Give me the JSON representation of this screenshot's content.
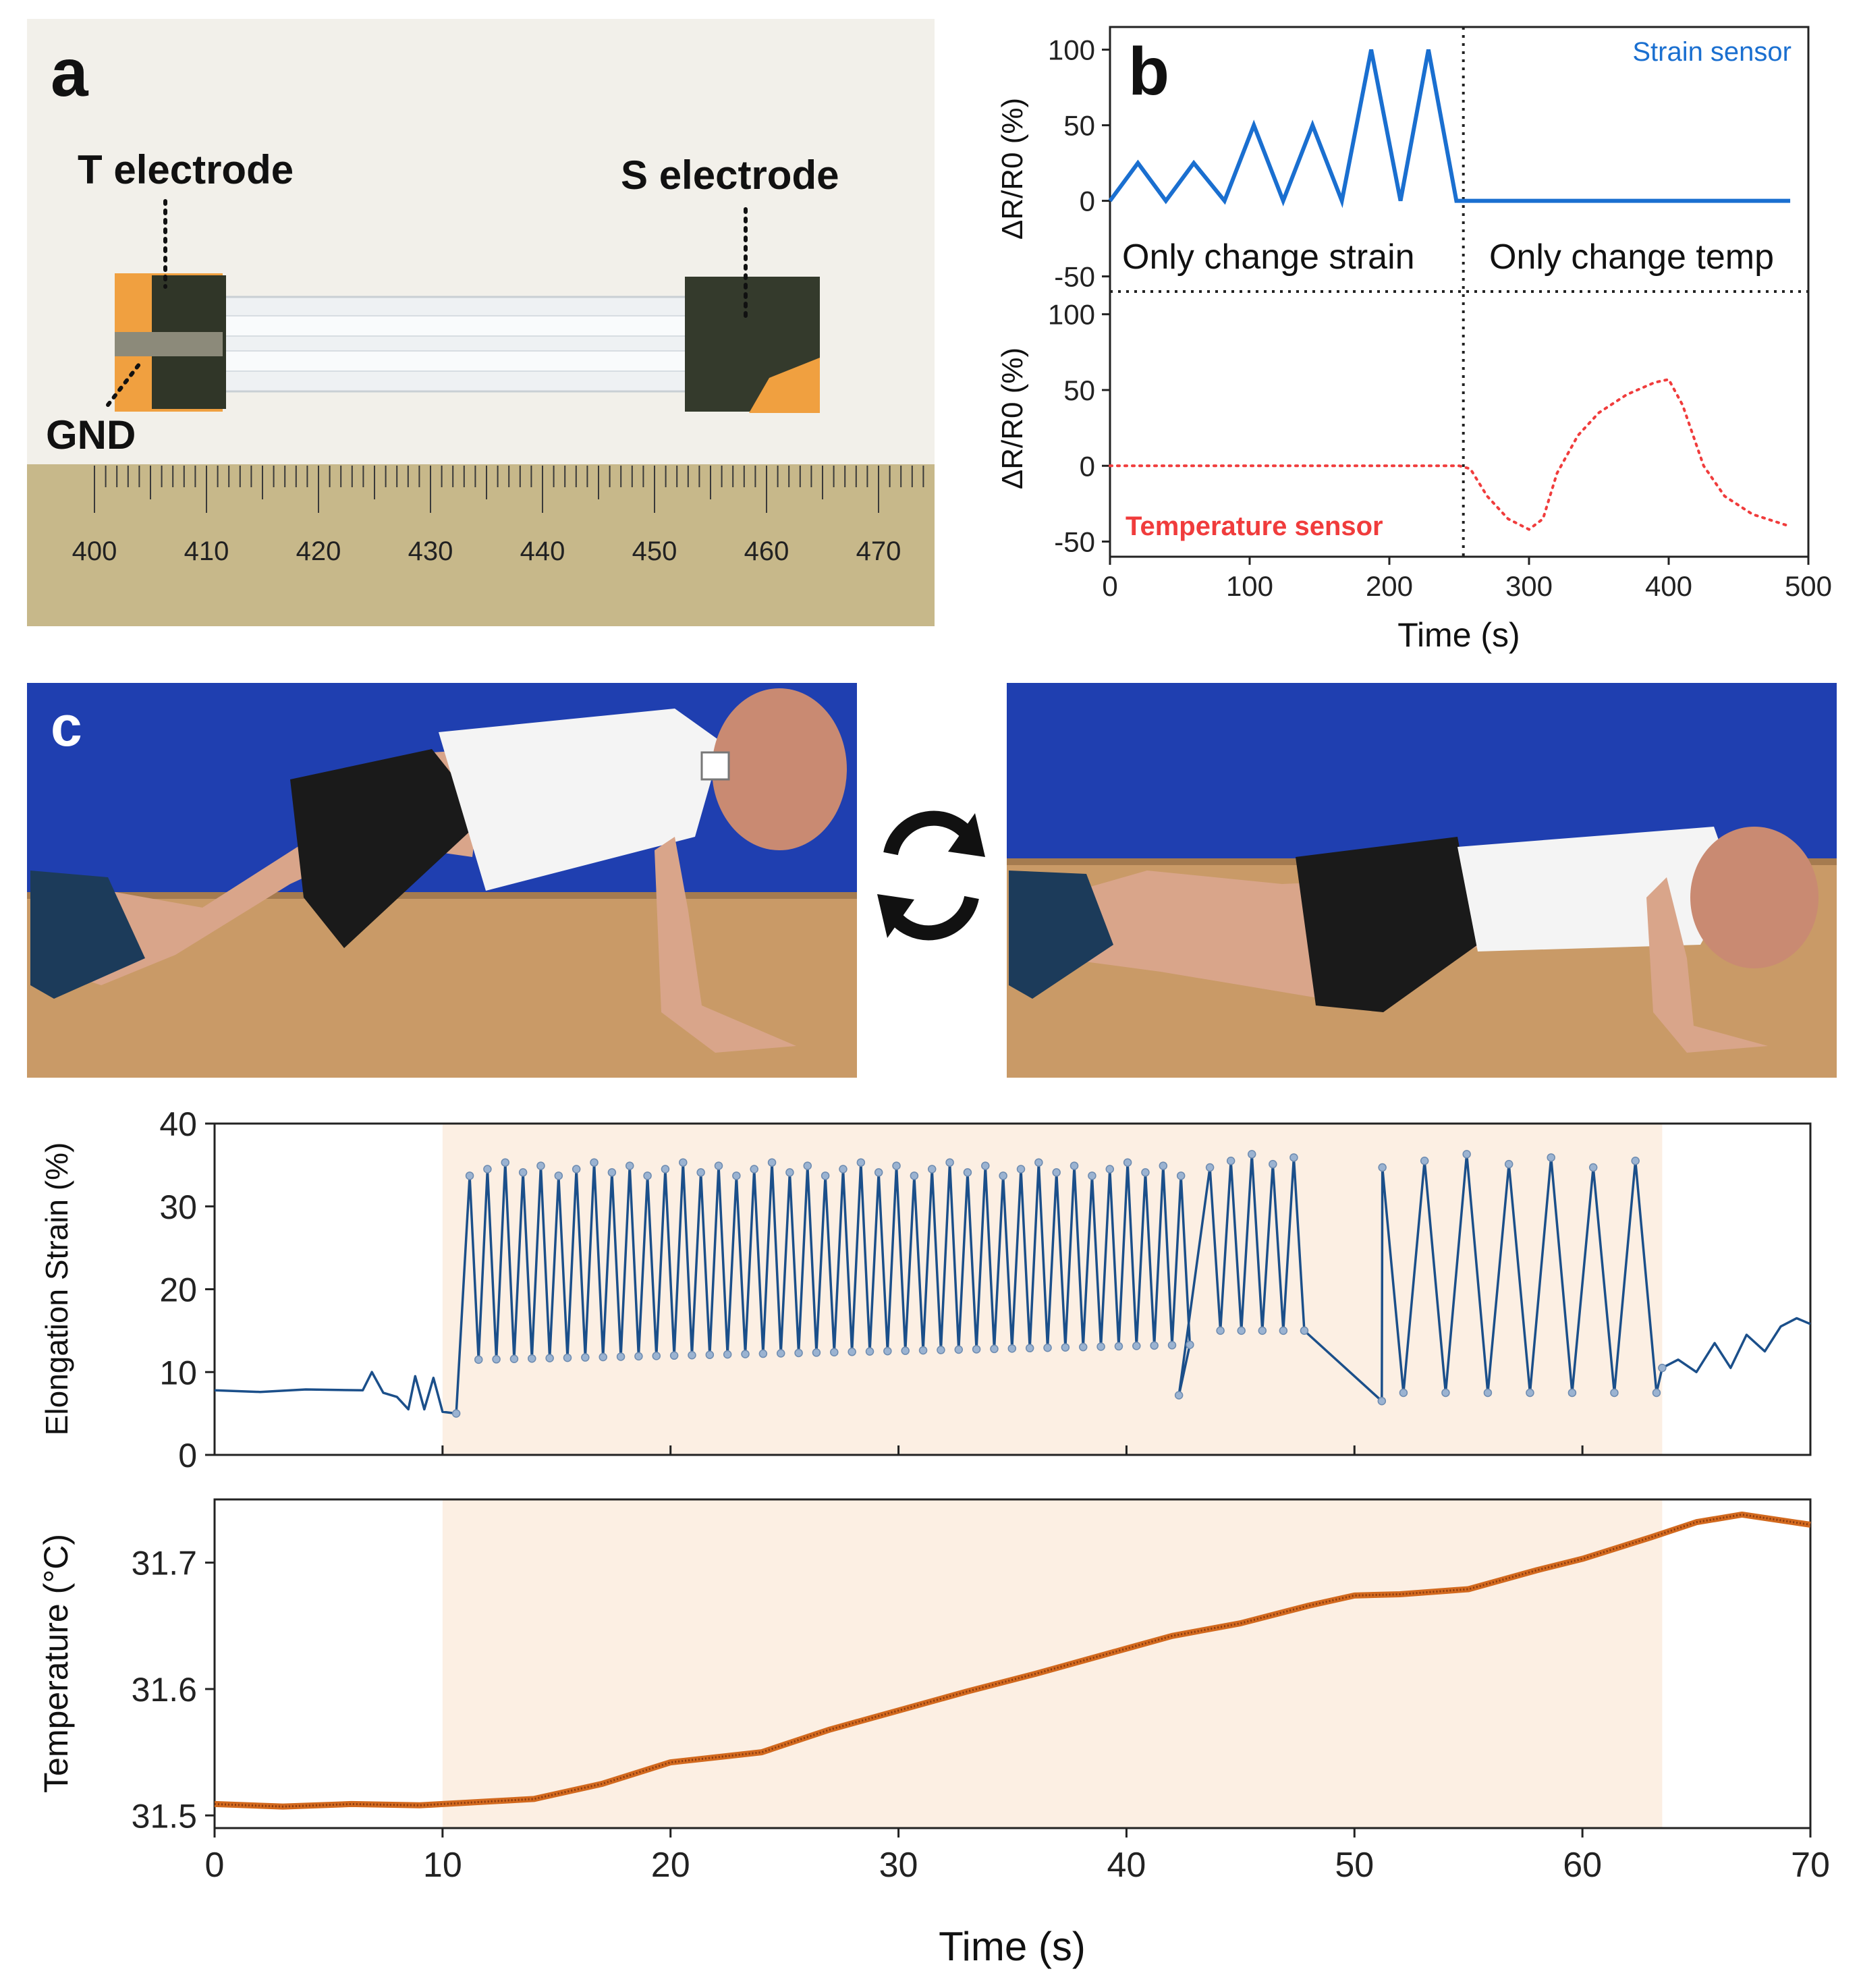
{
  "panel_a": {
    "letter": "a",
    "t_electrode": "T electrode",
    "s_electrode": "S electrode",
    "gnd": "GND",
    "ruler_labels": [
      "400",
      "410",
      "420",
      "430",
      "440",
      "450",
      "460",
      "470"
    ]
  },
  "panel_c": {
    "letter": "c",
    "cycle_icon": "cycle-arrows-icon",
    "photo_left": "push-up-up-position",
    "photo_right": "push-up-down-position"
  },
  "colors": {
    "strain_blue": "#1a6fd0",
    "temp_red": "#f03c3c",
    "strain_trace": "#1b4f8a",
    "strain_marker": "#9bb3d1",
    "temp_trace": "#8a3a10",
    "temp_trace_light": "#d2691e",
    "shade": "#fcefe3",
    "wall_blue": "#1f3fb0",
    "floor": "#c99a67"
  },
  "chart_data": [
    {
      "id": "b-top",
      "type": "line",
      "ylabel": "ΔR/R0 (%)",
      "legend": "Strain sensor",
      "yticks": [
        "100",
        "50",
        "0",
        "-50"
      ],
      "ylim": [
        -60,
        115
      ],
      "xlim": [
        0,
        500
      ],
      "region_labels": [
        "Only change strain",
        "Only change temp"
      ],
      "divider_x": 253,
      "series": [
        {
          "x": [
            0,
            20,
            40,
            60,
            82,
            103,
            124,
            145,
            166,
            187,
            208,
            228,
            248,
            253,
            300,
            400,
            487
          ],
          "y": [
            0,
            25,
            0,
            25,
            0,
            50,
            0,
            50,
            0,
            100,
            0,
            100,
            0,
            0,
            0,
            0,
            0
          ]
        }
      ]
    },
    {
      "id": "b-bottom",
      "type": "line",
      "ylabel": "ΔR/R0 (%)",
      "legend": "Temperature sensor",
      "xlabel": "Time (s)",
      "yticks": [
        "100",
        "50",
        "0",
        "-50"
      ],
      "xticks": [
        "0",
        "100",
        "200",
        "300",
        "400",
        "500"
      ],
      "ylim": [
        -60,
        115
      ],
      "xlim": [
        0,
        500
      ],
      "series": [
        {
          "x": [
            0,
            100,
            200,
            250,
            258,
            270,
            285,
            300,
            310,
            320,
            335,
            350,
            370,
            390,
            400,
            410,
            425,
            440,
            460,
            487
          ],
          "y": [
            0,
            0,
            0,
            0,
            -2,
            -20,
            -35,
            -42,
            -35,
            -5,
            20,
            35,
            47,
            55,
            57,
            40,
            0,
            -20,
            -32,
            -40
          ]
        }
      ]
    },
    {
      "id": "c-strain",
      "type": "line",
      "ylabel": "Elongation Strain (%)",
      "yticks": [
        "0",
        "10",
        "20",
        "30",
        "40"
      ],
      "ylim": [
        0,
        40
      ],
      "xlim": [
        0,
        70
      ],
      "shaded_region": [
        10,
        63.5
      ],
      "baseline": [
        [
          0,
          7.8
        ],
        [
          2,
          7.6
        ],
        [
          4,
          7.9
        ],
        [
          6.5,
          7.8
        ],
        [
          6.9,
          10
        ],
        [
          7.4,
          7.5
        ],
        [
          8,
          7
        ],
        [
          8.5,
          5.5
        ],
        [
          8.8,
          9.5
        ],
        [
          9.2,
          5.5
        ],
        [
          9.6,
          9.3
        ],
        [
          10,
          5.2
        ],
        [
          10.6,
          5
        ]
      ],
      "tail": [
        [
          63.5,
          10.5
        ],
        [
          64.2,
          11.5
        ],
        [
          65,
          10
        ],
        [
          65.8,
          13.5
        ],
        [
          66.5,
          10.5
        ],
        [
          67.2,
          14.5
        ],
        [
          68,
          12.5
        ],
        [
          68.7,
          15.5
        ],
        [
          69.4,
          16.5
        ],
        [
          70,
          15.8
        ]
      ],
      "cycle_segments": [
        {
          "start": 10.8,
          "period": 0.78,
          "count": 68,
          "min_start": 11.5,
          "min_end": 14.5,
          "max": 34.5
        },
        {
          "start": 43.2,
          "period": 0.92,
          "count": 5,
          "min_start": 15,
          "min_end": 15,
          "max": 35.5
        },
        {
          "start": 50.3,
          "period": 1.85,
          "count": 7,
          "min_start": 7.5,
          "min_end": 8.5,
          "max": 35.5
        }
      ],
      "dwell_points": [
        [
          42.3,
          7.2
        ],
        [
          51.2,
          6.5
        ]
      ]
    },
    {
      "id": "c-temperature",
      "type": "line",
      "ylabel": "Temperature (°C)",
      "xlabel": "Time (s)",
      "yticks": [
        "31.5",
        "31.6",
        "31.7"
      ],
      "xticks": [
        "0",
        "10",
        "20",
        "30",
        "40",
        "50",
        "60",
        "70"
      ],
      "ylim": [
        31.49,
        31.75
      ],
      "xlim": [
        0,
        70
      ],
      "shaded_region": [
        10,
        63.5
      ],
      "series": [
        {
          "x": [
            0,
            3,
            6,
            9,
            12,
            14,
            17,
            20,
            22,
            24,
            27,
            30,
            33,
            36,
            40,
            42,
            45,
            48,
            50,
            52,
            55,
            58,
            60,
            63,
            65,
            67,
            70
          ],
          "y": [
            31.509,
            31.507,
            31.509,
            31.508,
            31.511,
            31.513,
            31.525,
            31.542,
            31.546,
            31.55,
            31.568,
            31.583,
            31.598,
            31.612,
            31.632,
            31.642,
            31.652,
            31.666,
            31.674,
            31.675,
            31.679,
            31.694,
            31.703,
            31.72,
            31.732,
            31.738,
            31.73
          ]
        }
      ]
    }
  ]
}
